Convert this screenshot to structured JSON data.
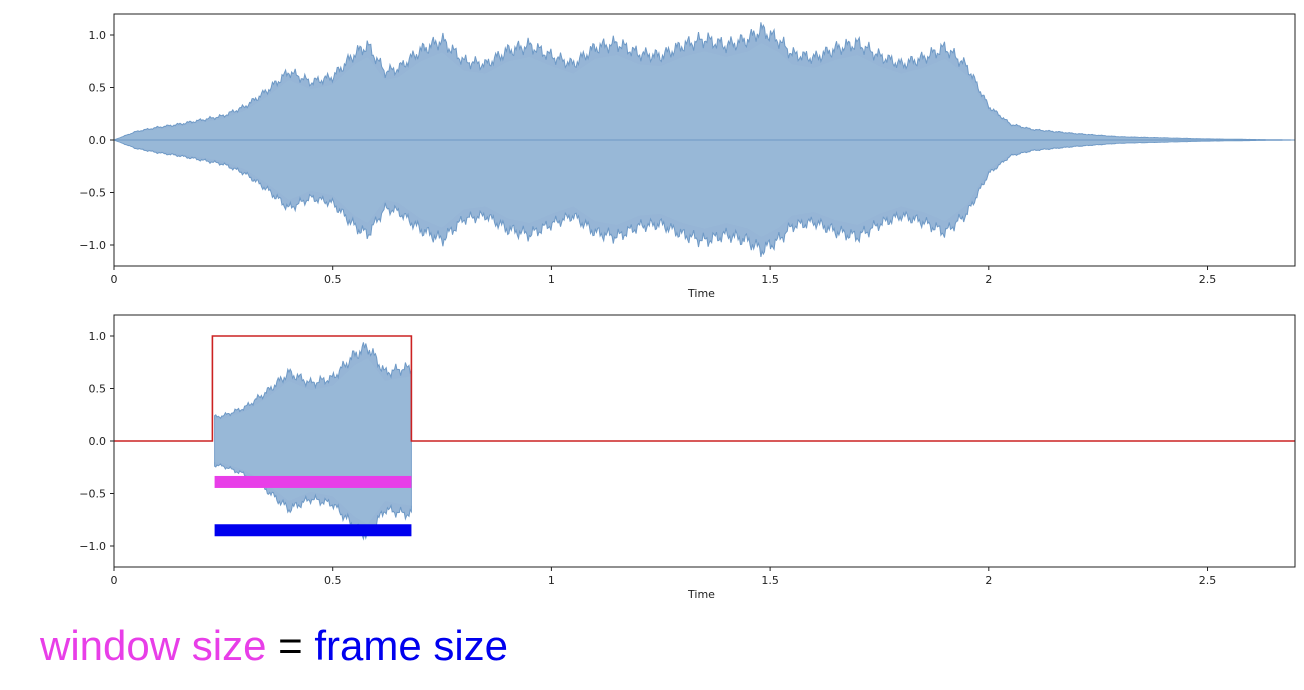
{
  "chart_data": [
    {
      "type": "area",
      "xlabel": "Time",
      "ylabel": "",
      "xlim": [
        0,
        2.7
      ],
      "ylim": [
        -1.2,
        1.2
      ],
      "xticks": [
        0,
        0.5,
        1,
        1.5,
        2,
        2.5
      ],
      "xtick_labels": [
        "0",
        "0.5",
        "1",
        "1.5",
        "2",
        "2.5"
      ],
      "yticks": [
        1.0,
        0.5,
        0.0,
        -0.5,
        -1.0
      ],
      "ytick_labels": [
        "1.0",
        "0.5",
        "0.0",
        "−0.5",
        "−1.0"
      ],
      "series": [
        {
          "color": "#6e99c6",
          "envelope": {
            "t": [
              0,
              0.05,
              0.1,
              0.15,
              0.2,
              0.25,
              0.3,
              0.35,
              0.4,
              0.45,
              0.5,
              0.55,
              0.58,
              0.62,
              0.65,
              0.7,
              0.75,
              0.8,
              0.85,
              0.9,
              0.95,
              1.0,
              1.05,
              1.1,
              1.15,
              1.2,
              1.25,
              1.3,
              1.35,
              1.4,
              1.45,
              1.48,
              1.52,
              1.55,
              1.6,
              1.65,
              1.7,
              1.75,
              1.8,
              1.85,
              1.9,
              1.95,
              2.0,
              2.05,
              2.1,
              2.2,
              2.3,
              2.4,
              2.5,
              2.6,
              2.7
            ],
            "amplitude": [
              0.0,
              0.08,
              0.12,
              0.15,
              0.19,
              0.23,
              0.32,
              0.47,
              0.65,
              0.55,
              0.6,
              0.82,
              0.9,
              0.65,
              0.68,
              0.85,
              0.95,
              0.75,
              0.72,
              0.85,
              0.9,
              0.8,
              0.72,
              0.88,
              0.92,
              0.82,
              0.8,
              0.9,
              0.96,
              0.9,
              0.96,
              1.05,
              0.95,
              0.82,
              0.78,
              0.87,
              0.92,
              0.8,
              0.72,
              0.78,
              0.88,
              0.7,
              0.32,
              0.15,
              0.1,
              0.06,
              0.03,
              0.02,
              0.01,
              0.005,
              0.0
            ]
          }
        }
      ]
    },
    {
      "type": "area",
      "xlabel": "Time",
      "ylabel": "",
      "xlim": [
        0,
        2.7
      ],
      "ylim": [
        -1.2,
        1.2
      ],
      "xticks": [
        0,
        0.5,
        1,
        1.5,
        2,
        2.5
      ],
      "xtick_labels": [
        "0",
        "0.5",
        "1",
        "1.5",
        "2",
        "2.5"
      ],
      "yticks": [
        1.0,
        0.5,
        0.0,
        -0.5,
        -1.0
      ],
      "ytick_labels": [
        "1.0",
        "0.5",
        "0.0",
        "−0.5",
        "−1.0"
      ],
      "series": [
        {
          "color": "#6e99c6",
          "envelope": {
            "t": [
              0.23,
              0.25,
              0.3,
              0.35,
              0.4,
              0.45,
              0.5,
              0.55,
              0.58,
              0.62,
              0.65,
              0.68
            ],
            "amplitude": [
              0.23,
              0.24,
              0.32,
              0.47,
              0.65,
              0.55,
              0.6,
              0.82,
              0.9,
              0.65,
              0.68,
              0.7
            ]
          }
        },
        {
          "color": "#cc2222",
          "window": {
            "x": [
              0,
              0.225,
              0.225,
              0.68,
              0.68,
              2.7
            ],
            "y": [
              0,
              0,
              1.0,
              1.0,
              0,
              0
            ]
          }
        }
      ],
      "annotations": [
        {
          "name": "window-size-bar",
          "color": "#e83ee8",
          "x": [
            0.23,
            0.68
          ],
          "y": -0.39
        },
        {
          "name": "frame-size-bar",
          "color": "#0000ee",
          "x": [
            0.23,
            0.68
          ],
          "y": -0.85
        }
      ]
    }
  ],
  "caption": {
    "window_size": "window size",
    "equals": " = ",
    "frame_size": "frame size",
    "colors": {
      "window": "#e83ee8",
      "equals": "#000000",
      "frame": "#0000ee"
    }
  }
}
